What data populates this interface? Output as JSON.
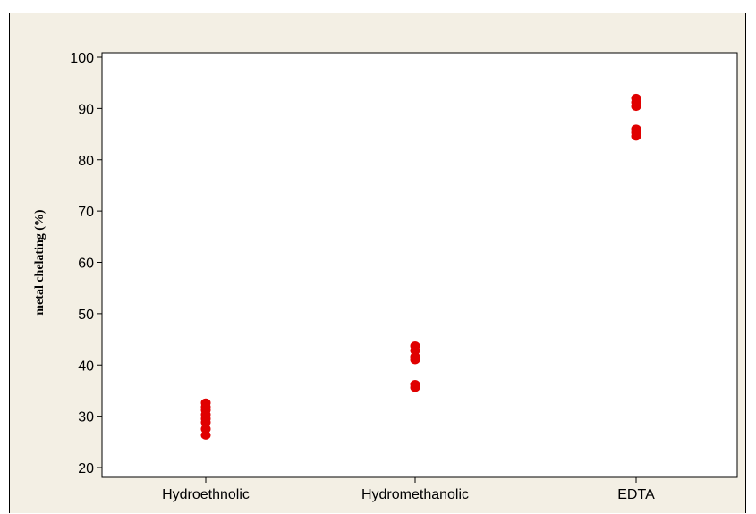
{
  "chart_data": {
    "type": "scatter",
    "title": "",
    "xlabel": "",
    "ylabel": "metal chelating (%)",
    "categories": [
      "Hydroethnolic",
      "Hydromethanolic",
      "EDTA"
    ],
    "ylim": [
      20,
      100
    ],
    "yticks": [
      20,
      30,
      40,
      50,
      60,
      70,
      80,
      90,
      100
    ],
    "grid": false,
    "legend": "none",
    "point_color": "#e00000",
    "series": [
      {
        "points": [
          {
            "category": "Hydroethnolic",
            "y": 26.3
          },
          {
            "category": "Hydroethnolic",
            "y": 27.5
          },
          {
            "category": "Hydroethnolic",
            "y": 28.8
          },
          {
            "category": "Hydroethnolic",
            "y": 29.5
          },
          {
            "category": "Hydroethnolic",
            "y": 30.3
          },
          {
            "category": "Hydroethnolic",
            "y": 31.2
          },
          {
            "category": "Hydroethnolic",
            "y": 31.8
          },
          {
            "category": "Hydroethnolic",
            "y": 32.6
          },
          {
            "category": "Hydromethanolic",
            "y": 35.6
          },
          {
            "category": "Hydromethanolic",
            "y": 36.2
          },
          {
            "category": "Hydromethanolic",
            "y": 41.0
          },
          {
            "category": "Hydromethanolic",
            "y": 41.6
          },
          {
            "category": "Hydromethanolic",
            "y": 42.8
          },
          {
            "category": "Hydromethanolic",
            "y": 43.7
          },
          {
            "category": "EDTA",
            "y": 84.6
          },
          {
            "category": "EDTA",
            "y": 85.3
          },
          {
            "category": "EDTA",
            "y": 86.0
          },
          {
            "category": "EDTA",
            "y": 90.4
          },
          {
            "category": "EDTA",
            "y": 91.2
          },
          {
            "category": "EDTA",
            "y": 92.0
          }
        ]
      }
    ]
  }
}
